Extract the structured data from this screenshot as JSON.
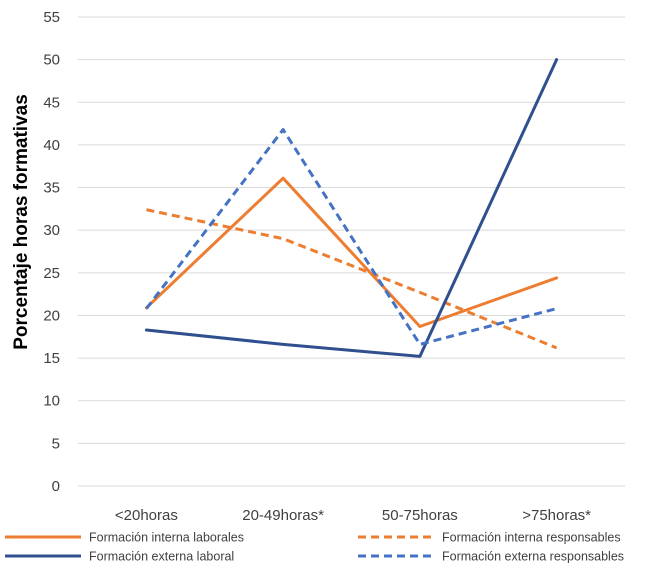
{
  "chart_data": {
    "type": "line",
    "title": "",
    "xlabel": "",
    "ylabel": "Porcentaje horas formativas",
    "categories": [
      "<20horas",
      "20-49horas*",
      "50-75horas",
      ">75horas*"
    ],
    "ylim": [
      0,
      55
    ],
    "yticks": [
      0,
      5,
      10,
      15,
      20,
      25,
      30,
      35,
      40,
      45,
      50,
      55
    ],
    "grid": true,
    "legend_position": "bottom",
    "series": [
      {
        "name": "Formación interna laborales",
        "values": [
          20.9,
          36.1,
          18.7,
          24.4
        ],
        "color": "#ED7D31",
        "dash": "solid"
      },
      {
        "name": "Formación interna responsables",
        "values": [
          32.4,
          29.0,
          22.7,
          16.2
        ],
        "color": "#ED7D31",
        "dash": "dashed"
      },
      {
        "name": "Formación externa laboral",
        "values": [
          18.3,
          16.6,
          15.2,
          50.0
        ],
        "color": "#2F4F8F",
        "dash": "solid"
      },
      {
        "name": "Formación externa responsables",
        "values": [
          20.8,
          41.8,
          16.6,
          20.8
        ],
        "color": "#4472C4",
        "dash": "dashed"
      }
    ]
  }
}
